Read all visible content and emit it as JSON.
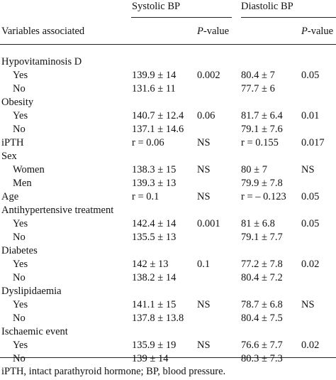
{
  "header": {
    "systolic": "Systolic BP",
    "diastolic": "Diastolic BP",
    "variables": "Variables associated",
    "p_value_italic": "P",
    "p_value_rest": "-value"
  },
  "groups": [
    {
      "label": "Hypovitaminosis D",
      "rows": [
        [
          "Yes",
          "139.9 ± 14",
          "0.002",
          "80.4 ± 7",
          "0.05"
        ],
        [
          "No",
          "131.6 ± 11",
          "",
          "77.7 ± 6",
          ""
        ]
      ]
    },
    {
      "label": "Obesity",
      "rows": [
        [
          "Yes",
          "140.7 ± 12.4",
          "0.06",
          "81.7 ± 6.4",
          "0.01"
        ],
        [
          "No",
          "137.1 ± 14.6",
          "",
          "79.1 ± 7.6",
          ""
        ]
      ]
    },
    {
      "label": "iPTH",
      "values": [
        "r = 0.06",
        "NS",
        "r = 0.155",
        "0.017"
      ]
    },
    {
      "label": "Sex",
      "rows": [
        [
          "Women",
          "138.3 ± 15",
          "NS",
          "80 ± 7",
          "NS"
        ],
        [
          "Men",
          "139.3 ± 13",
          "",
          "79.9 ± 7.8",
          ""
        ]
      ]
    },
    {
      "label": "Age",
      "values": [
        "r = 0.1",
        "NS",
        "r = – 0.123",
        "0.05"
      ]
    },
    {
      "label": "Antihypertensive treatment",
      "rows": [
        [
          "Yes",
          "142.4 ± 14",
          "0.001",
          "81 ± 6.8",
          "0.05"
        ],
        [
          "No",
          "135.5 ± 13",
          "",
          "79.1 ± 7.7",
          ""
        ]
      ]
    },
    {
      "label": "Diabetes",
      "rows": [
        [
          "Yes",
          "142 ± 13",
          "0.1",
          "77.2 ± 7.8",
          "0.02"
        ],
        [
          "No",
          "138.2 ± 14",
          "",
          "80.4 ± 7.2",
          ""
        ]
      ]
    },
    {
      "label": "Dyslipidaemia",
      "rows": [
        [
          "Yes",
          "141.1 ± 15",
          "NS",
          "78.7 ± 6.8",
          "NS"
        ],
        [
          "No",
          "137.8 ± 13.8",
          "",
          "80.4 ± 7.5",
          ""
        ]
      ]
    },
    {
      "label": "Ischaemic event",
      "rows": [
        [
          "Yes",
          "135.9 ± 19",
          "NS",
          "76.6 ± 7.7",
          "0.02"
        ],
        [
          "No",
          "139 ± 14",
          "",
          "80.3 ± 7.3",
          ""
        ]
      ]
    }
  ],
  "footnote": "iPTH, intact parathyroid hormone; BP, blood pressure."
}
